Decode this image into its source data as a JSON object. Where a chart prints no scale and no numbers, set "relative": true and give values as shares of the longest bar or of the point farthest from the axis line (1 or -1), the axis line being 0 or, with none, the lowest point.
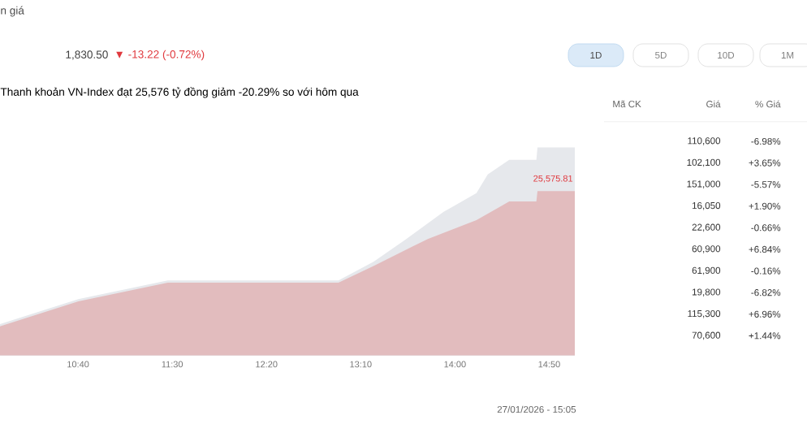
{
  "chart_data": [
    {
      "type": "area",
      "title": "Thanh khoản VN-Index đạt 25,576 tỷ đồng giảm -20.29% so với hôm qua",
      "relative": true,
      "xlim": [
        9.977,
        15.06
      ],
      "xticks": [
        {
          "value": 10.6667,
          "label": "10:40"
        },
        {
          "value": 11.5,
          "label": "11:30"
        },
        {
          "value": 12.3333,
          "label": "12:20"
        },
        {
          "value": 13.1667,
          "label": "13:10"
        },
        {
          "value": 14.0,
          "label": "14:00"
        },
        {
          "value": 14.8333,
          "label": "14:50"
        }
      ],
      "series": [
        {
          "color": "#e6e8ec",
          "x": [
            9.977,
            10.67,
            11.46,
            12.97,
            13.28,
            13.57,
            13.9,
            14.19,
            14.29,
            14.48,
            14.72,
            14.73,
            15.06
          ],
          "values": [
            0.15,
            0.27,
            0.36,
            0.36,
            0.45,
            0.56,
            0.69,
            0.78,
            0.87,
            0.94,
            0.94,
            1.0,
            1.0
          ]
        },
        {
          "color": "#e2bcbe",
          "x": [
            9.977,
            10.67,
            11.46,
            12.97,
            13.28,
            13.76,
            14.19,
            14.48,
            14.72,
            14.73,
            15.06
          ],
          "values": [
            0.14,
            0.26,
            0.35,
            0.35,
            0.43,
            0.56,
            0.65,
            0.74,
            0.74,
            0.79,
            0.79
          ]
        }
      ],
      "annotations": [
        "n giá",
        "1,830.50",
        "▼ -13.22 (-0.72%)",
        "1D",
        "5D",
        "10D",
        "1M",
        "27/01/2026 - 15:05",
        "25,575.81"
      ]
    },
    {
      "type": "other",
      "annotations": [
        "Mã CK",
        "Giá",
        "% Giá",
        "110,600",
        "-6.98%",
        "102,100",
        "+3.65%",
        "151,000",
        "-5.57%",
        "16,050",
        "+1.90%",
        "22,600",
        "-0.66%",
        "60,900",
        "+6.84%",
        "61,900",
        "-0.16%",
        "19,800",
        "-6.82%",
        "115,300",
        "+6.96%",
        "70,600",
        "+1.44%"
      ]
    }
  ]
}
